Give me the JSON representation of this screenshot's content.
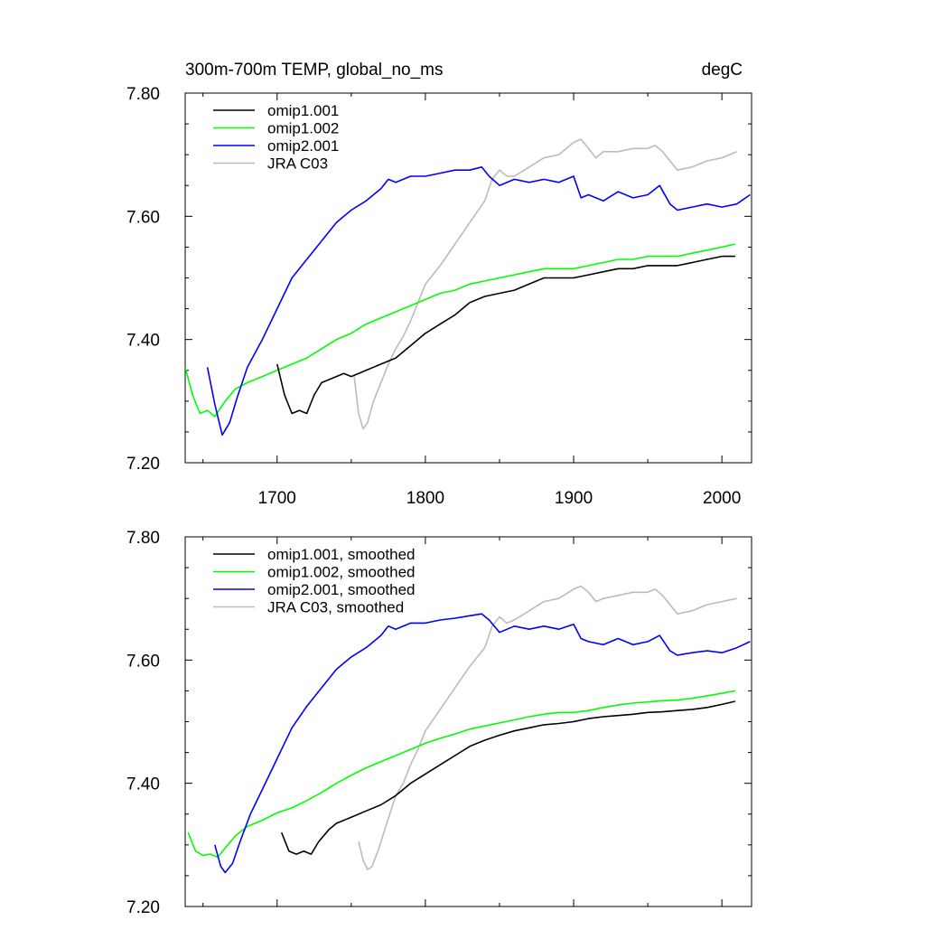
{
  "header": {
    "title": "300m-700m TEMP, global_no_ms",
    "units": "degC"
  },
  "chart_data": [
    {
      "type": "line",
      "title": "300m-700m TEMP, global_no_ms",
      "units": "degC",
      "xlabel": "",
      "ylabel": "",
      "xlim": [
        1638,
        2020
      ],
      "ylim": [
        7.2,
        7.8
      ],
      "xticks": [
        1700,
        1800,
        1900,
        2000
      ],
      "xtick_labels": [
        "1700",
        "1800",
        "1900",
        "2000"
      ],
      "yticks": [
        7.2,
        7.4,
        7.6,
        7.8
      ],
      "ytick_labels": [
        "7.20",
        "7.40",
        "7.60",
        "7.80"
      ],
      "grid": false,
      "legend": "top-left",
      "series": [
        {
          "name": "omip1.001",
          "color": "#000000",
          "x": [
            1700,
            1705,
            1710,
            1715,
            1720,
            1725,
            1730,
            1735,
            1740,
            1745,
            1750,
            1755,
            1760,
            1765,
            1770,
            1775,
            1780,
            1790,
            1800,
            1810,
            1820,
            1830,
            1840,
            1850,
            1860,
            1870,
            1880,
            1890,
            1900,
            1910,
            1920,
            1930,
            1940,
            1950,
            1960,
            1970,
            1980,
            1990,
            2000,
            2009
          ],
          "y": [
            7.36,
            7.31,
            7.28,
            7.285,
            7.28,
            7.31,
            7.33,
            7.335,
            7.34,
            7.345,
            7.34,
            7.345,
            7.35,
            7.355,
            7.36,
            7.365,
            7.37,
            7.39,
            7.41,
            7.425,
            7.44,
            7.46,
            7.47,
            7.475,
            7.48,
            7.49,
            7.5,
            7.5,
            7.5,
            7.505,
            7.51,
            7.515,
            7.515,
            7.52,
            7.52,
            7.52,
            7.525,
            7.53,
            7.535,
            7.535
          ]
        },
        {
          "name": "omip1.002",
          "color": "#00ff00",
          "x": [
            1638,
            1643,
            1648,
            1653,
            1658,
            1665,
            1672,
            1680,
            1690,
            1700,
            1710,
            1720,
            1730,
            1740,
            1750,
            1760,
            1770,
            1780,
            1790,
            1800,
            1810,
            1820,
            1830,
            1840,
            1850,
            1860,
            1870,
            1880,
            1890,
            1900,
            1910,
            1920,
            1930,
            1940,
            1950,
            1960,
            1970,
            1980,
            1990,
            2000,
            2009
          ],
          "y": [
            7.355,
            7.31,
            7.28,
            7.285,
            7.275,
            7.3,
            7.32,
            7.33,
            7.34,
            7.35,
            7.36,
            7.37,
            7.385,
            7.4,
            7.41,
            7.425,
            7.435,
            7.445,
            7.455,
            7.465,
            7.475,
            7.48,
            7.49,
            7.495,
            7.5,
            7.505,
            7.51,
            7.515,
            7.515,
            7.515,
            7.52,
            7.525,
            7.53,
            7.53,
            7.535,
            7.535,
            7.535,
            7.54,
            7.545,
            7.55,
            7.555
          ]
        },
        {
          "name": "omip2.001",
          "color": "#0000ff",
          "x": [
            1653,
            1658,
            1663,
            1668,
            1673,
            1680,
            1690,
            1700,
            1710,
            1720,
            1730,
            1740,
            1750,
            1760,
            1770,
            1775,
            1780,
            1790,
            1800,
            1810,
            1820,
            1830,
            1838,
            1843,
            1850,
            1860,
            1870,
            1880,
            1890,
            1900,
            1905,
            1910,
            1920,
            1930,
            1940,
            1950,
            1958,
            1965,
            1970,
            1980,
            1990,
            2000,
            2010,
            2019
          ],
          "y": [
            7.355,
            7.295,
            7.245,
            7.265,
            7.305,
            7.355,
            7.4,
            7.45,
            7.5,
            7.53,
            7.56,
            7.59,
            7.61,
            7.625,
            7.645,
            7.66,
            7.655,
            7.665,
            7.665,
            7.67,
            7.675,
            7.675,
            7.68,
            7.665,
            7.65,
            7.66,
            7.655,
            7.66,
            7.655,
            7.665,
            7.63,
            7.635,
            7.625,
            7.64,
            7.63,
            7.635,
            7.65,
            7.62,
            7.61,
            7.615,
            7.62,
            7.615,
            7.62,
            7.635
          ]
        },
        {
          "name": "JRA C03",
          "color": "#bbbbbb",
          "x": [
            1752,
            1755,
            1758,
            1761,
            1765,
            1770,
            1775,
            1780,
            1785,
            1790,
            1795,
            1800,
            1810,
            1820,
            1830,
            1840,
            1845,
            1850,
            1855,
            1860,
            1870,
            1880,
            1890,
            1900,
            1905,
            1910,
            1915,
            1920,
            1930,
            1940,
            1950,
            1955,
            1960,
            1965,
            1970,
            1980,
            1990,
            2000,
            2010
          ],
          "y": [
            7.34,
            7.28,
            7.255,
            7.265,
            7.3,
            7.33,
            7.36,
            7.385,
            7.405,
            7.43,
            7.46,
            7.49,
            7.52,
            7.555,
            7.59,
            7.625,
            7.66,
            7.675,
            7.665,
            7.665,
            7.68,
            7.695,
            7.7,
            7.72,
            7.725,
            7.71,
            7.695,
            7.705,
            7.705,
            7.71,
            7.71,
            7.715,
            7.705,
            7.69,
            7.675,
            7.68,
            7.69,
            7.695,
            7.705
          ]
        }
      ]
    },
    {
      "type": "line",
      "title": "",
      "xlabel": "",
      "ylabel": "",
      "xlim": [
        1638,
        2020
      ],
      "ylim": [
        7.2,
        7.8
      ],
      "xticks": [
        1700,
        1800,
        1900,
        2000
      ],
      "yticks": [
        7.2,
        7.4,
        7.6,
        7.8
      ],
      "ytick_labels": [
        "7.20",
        "7.40",
        "7.60",
        "7.80"
      ],
      "grid": false,
      "legend": "top-left",
      "series": [
        {
          "name": "omip1.001, smoothed",
          "color": "#000000",
          "x": [
            1703,
            1708,
            1713,
            1718,
            1723,
            1728,
            1735,
            1740,
            1750,
            1760,
            1770,
            1780,
            1790,
            1800,
            1810,
            1820,
            1830,
            1840,
            1850,
            1860,
            1870,
            1880,
            1890,
            1900,
            1910,
            1920,
            1930,
            1940,
            1950,
            1960,
            1970,
            1980,
            1990,
            2000,
            2009
          ],
          "y": [
            7.32,
            7.29,
            7.285,
            7.29,
            7.285,
            7.305,
            7.325,
            7.335,
            7.345,
            7.355,
            7.365,
            7.38,
            7.4,
            7.415,
            7.43,
            7.445,
            7.46,
            7.47,
            7.478,
            7.485,
            7.49,
            7.495,
            7.497,
            7.5,
            7.505,
            7.508,
            7.51,
            7.512,
            7.515,
            7.516,
            7.518,
            7.52,
            7.523,
            7.528,
            7.533
          ]
        },
        {
          "name": "omip1.002, smoothed",
          "color": "#00ff00",
          "x": [
            1640,
            1645,
            1650,
            1655,
            1660,
            1665,
            1672,
            1680,
            1690,
            1700,
            1710,
            1720,
            1730,
            1740,
            1750,
            1760,
            1770,
            1780,
            1790,
            1800,
            1810,
            1820,
            1830,
            1840,
            1850,
            1860,
            1870,
            1880,
            1890,
            1900,
            1910,
            1920,
            1930,
            1940,
            1950,
            1960,
            1970,
            1980,
            1990,
            2000,
            2009
          ],
          "y": [
            7.32,
            7.29,
            7.283,
            7.285,
            7.28,
            7.295,
            7.315,
            7.33,
            7.34,
            7.352,
            7.36,
            7.372,
            7.385,
            7.4,
            7.413,
            7.425,
            7.435,
            7.445,
            7.455,
            7.465,
            7.473,
            7.48,
            7.488,
            7.493,
            7.498,
            7.503,
            7.508,
            7.512,
            7.515,
            7.515,
            7.518,
            7.523,
            7.527,
            7.53,
            7.532,
            7.534,
            7.535,
            7.538,
            7.542,
            7.546,
            7.55
          ]
        },
        {
          "name": "omip2.001, smoothed",
          "color": "#0000ff",
          "x": [
            1658,
            1662,
            1665,
            1670,
            1675,
            1682,
            1690,
            1700,
            1710,
            1720,
            1730,
            1740,
            1750,
            1760,
            1770,
            1775,
            1780,
            1790,
            1800,
            1810,
            1820,
            1830,
            1838,
            1843,
            1850,
            1860,
            1870,
            1880,
            1890,
            1900,
            1905,
            1910,
            1920,
            1930,
            1940,
            1950,
            1958,
            1965,
            1970,
            1980,
            1990,
            2000,
            2010,
            2019
          ],
          "y": [
            7.3,
            7.265,
            7.255,
            7.27,
            7.305,
            7.35,
            7.39,
            7.44,
            7.49,
            7.525,
            7.555,
            7.585,
            7.605,
            7.62,
            7.64,
            7.655,
            7.65,
            7.66,
            7.66,
            7.665,
            7.668,
            7.672,
            7.675,
            7.665,
            7.645,
            7.655,
            7.65,
            7.655,
            7.65,
            7.658,
            7.635,
            7.63,
            7.625,
            7.635,
            7.625,
            7.63,
            7.64,
            7.615,
            7.608,
            7.612,
            7.615,
            7.612,
            7.62,
            7.63
          ]
        },
        {
          "name": "JRA C03, smoothed",
          "color": "#bbbbbb",
          "x": [
            1755,
            1758,
            1761,
            1764,
            1768,
            1772,
            1776,
            1780,
            1785,
            1790,
            1795,
            1800,
            1810,
            1820,
            1830,
            1840,
            1845,
            1850,
            1855,
            1860,
            1870,
            1880,
            1890,
            1900,
            1905,
            1910,
            1915,
            1920,
            1930,
            1940,
            1950,
            1955,
            1960,
            1965,
            1970,
            1980,
            1990,
            2000,
            2010
          ],
          "y": [
            7.305,
            7.275,
            7.26,
            7.265,
            7.29,
            7.32,
            7.35,
            7.38,
            7.4,
            7.43,
            7.455,
            7.485,
            7.52,
            7.555,
            7.59,
            7.62,
            7.655,
            7.67,
            7.66,
            7.665,
            7.68,
            7.695,
            7.7,
            7.715,
            7.72,
            7.71,
            7.695,
            7.7,
            7.705,
            7.71,
            7.71,
            7.715,
            7.705,
            7.69,
            7.675,
            7.68,
            7.69,
            7.695,
            7.7
          ]
        }
      ]
    }
  ]
}
